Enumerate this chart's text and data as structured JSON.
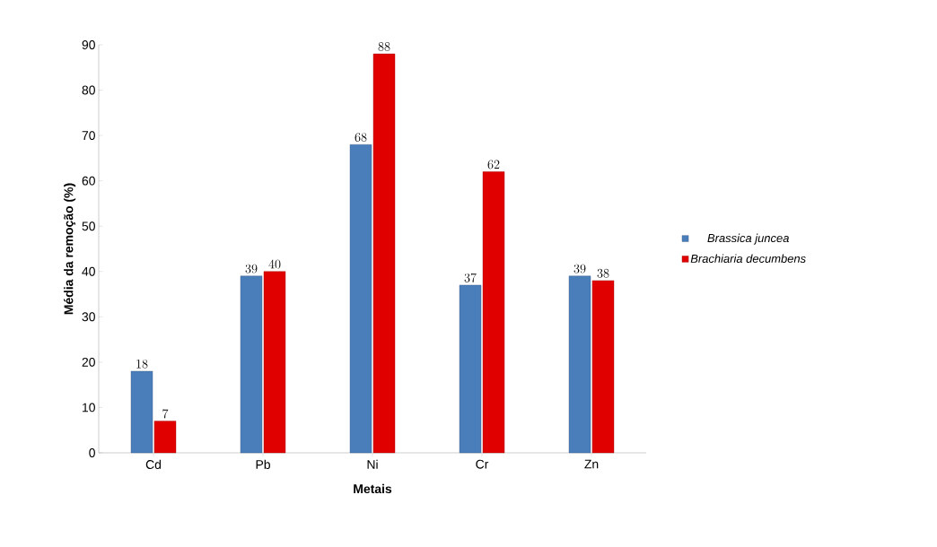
{
  "chart_data": {
    "type": "bar",
    "xlabel": "Metais",
    "ylabel": "Média da remoção (%)",
    "categories": [
      "Cd",
      "Pb",
      "Ni",
      "Cr",
      "Zn"
    ],
    "series": [
      {
        "name": "Brassica juncea",
        "color": "#4a7ebb",
        "values": [
          18,
          39,
          68,
          37,
          39
        ]
      },
      {
        "name": "Brachiaria decumbens",
        "color": "#e00000",
        "values": [
          7,
          40,
          88,
          62,
          38
        ]
      }
    ],
    "ylim": [
      0,
      90
    ],
    "yticks": [
      0,
      10,
      20,
      30,
      40,
      50,
      60,
      70,
      80,
      90
    ],
    "data_labels": true,
    "legend": "right",
    "grid": false
  }
}
